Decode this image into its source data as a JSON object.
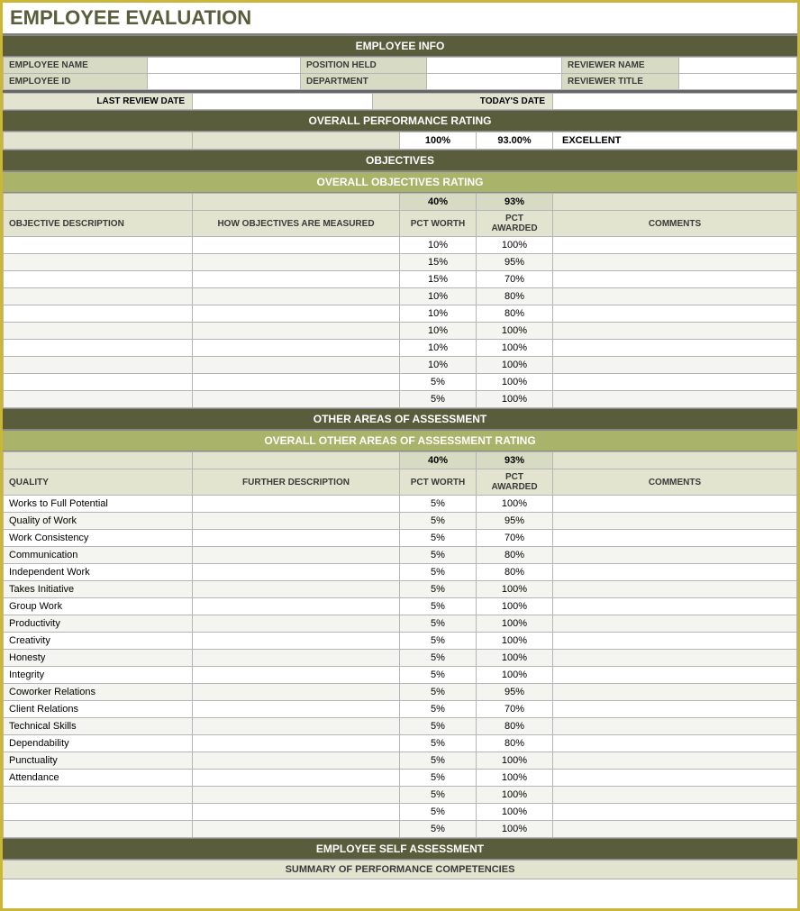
{
  "colors": {
    "border_outer": "#c9b63a",
    "section_dark": "#595d3b",
    "section_olive": "#a9b36a",
    "section_light": "#e2e4cf",
    "label_bg": "#d8dbc4",
    "grid": "#b5b5b5",
    "text_dark": "#3a3a3a",
    "row_alt": "#f4f4f0"
  },
  "title": "EMPLOYEE EVALUATION",
  "employee_info": {
    "header": "EMPLOYEE INFO",
    "labels": {
      "name": "EMPLOYEE NAME",
      "id": "EMPLOYEE ID",
      "position": "POSITION HELD",
      "department": "DEPARTMENT",
      "reviewer_name": "REVIEWER NAME",
      "reviewer_title": "REVIEWER TITLE"
    },
    "values": {
      "name": "",
      "id": "",
      "position": "",
      "department": "",
      "reviewer_name": "",
      "reviewer_title": ""
    },
    "date_labels": {
      "last": "LAST REVIEW DATE",
      "today": "TODAY'S DATE"
    },
    "date_values": {
      "last": "",
      "today": ""
    }
  },
  "overall": {
    "header": "OVERALL PERFORMANCE RATING",
    "pct_worth": "100%",
    "pct_awarded": "93.00%",
    "rating": "EXCELLENT"
  },
  "objectives": {
    "header": "OBJECTIVES",
    "subheader": "OVERALL OBJECTIVES RATING",
    "summary": {
      "worth": "40%",
      "awarded": "93%"
    },
    "columns": {
      "desc": "OBJECTIVE DESCRIPTION",
      "measured": "HOW OBJECTIVES ARE MEASURED",
      "worth": "PCT WORTH",
      "awarded": "PCT AWARDED",
      "comments": "COMMENTS"
    },
    "rows": [
      {
        "desc": "",
        "measured": "",
        "worth": "10%",
        "awarded": "100%",
        "comments": ""
      },
      {
        "desc": "",
        "measured": "",
        "worth": "15%",
        "awarded": "95%",
        "comments": ""
      },
      {
        "desc": "",
        "measured": "",
        "worth": "15%",
        "awarded": "70%",
        "comments": ""
      },
      {
        "desc": "",
        "measured": "",
        "worth": "10%",
        "awarded": "80%",
        "comments": ""
      },
      {
        "desc": "",
        "measured": "",
        "worth": "10%",
        "awarded": "80%",
        "comments": ""
      },
      {
        "desc": "",
        "measured": "",
        "worth": "10%",
        "awarded": "100%",
        "comments": ""
      },
      {
        "desc": "",
        "measured": "",
        "worth": "10%",
        "awarded": "100%",
        "comments": ""
      },
      {
        "desc": "",
        "measured": "",
        "worth": "10%",
        "awarded": "100%",
        "comments": ""
      },
      {
        "desc": "",
        "measured": "",
        "worth": "5%",
        "awarded": "100%",
        "comments": ""
      },
      {
        "desc": "",
        "measured": "",
        "worth": "5%",
        "awarded": "100%",
        "comments": ""
      }
    ]
  },
  "other_areas": {
    "header": "OTHER AREAS OF ASSESSMENT",
    "subheader": "OVERALL OTHER AREAS OF ASSESSMENT RATING",
    "summary": {
      "worth": "40%",
      "awarded": "93%"
    },
    "columns": {
      "quality": "QUALITY",
      "further": "FURTHER DESCRIPTION",
      "worth": "PCT WORTH",
      "awarded": "PCT AWARDED",
      "comments": "COMMENTS"
    },
    "rows": [
      {
        "quality": "Works to Full Potential",
        "further": "",
        "worth": "5%",
        "awarded": "100%",
        "comments": ""
      },
      {
        "quality": "Quality of Work",
        "further": "",
        "worth": "5%",
        "awarded": "95%",
        "comments": ""
      },
      {
        "quality": "Work Consistency",
        "further": "",
        "worth": "5%",
        "awarded": "70%",
        "comments": ""
      },
      {
        "quality": "Communication",
        "further": "",
        "worth": "5%",
        "awarded": "80%",
        "comments": ""
      },
      {
        "quality": "Independent Work",
        "further": "",
        "worth": "5%",
        "awarded": "80%",
        "comments": ""
      },
      {
        "quality": "Takes Initiative",
        "further": "",
        "worth": "5%",
        "awarded": "100%",
        "comments": ""
      },
      {
        "quality": "Group Work",
        "further": "",
        "worth": "5%",
        "awarded": "100%",
        "comments": ""
      },
      {
        "quality": "Productivity",
        "further": "",
        "worth": "5%",
        "awarded": "100%",
        "comments": ""
      },
      {
        "quality": "Creativity",
        "further": "",
        "worth": "5%",
        "awarded": "100%",
        "comments": ""
      },
      {
        "quality": "Honesty",
        "further": "",
        "worth": "5%",
        "awarded": "100%",
        "comments": ""
      },
      {
        "quality": "Integrity",
        "further": "",
        "worth": "5%",
        "awarded": "100%",
        "comments": ""
      },
      {
        "quality": "Coworker Relations",
        "further": "",
        "worth": "5%",
        "awarded": "95%",
        "comments": ""
      },
      {
        "quality": "Client Relations",
        "further": "",
        "worth": "5%",
        "awarded": "70%",
        "comments": ""
      },
      {
        "quality": "Technical Skills",
        "further": "",
        "worth": "5%",
        "awarded": "80%",
        "comments": ""
      },
      {
        "quality": "Dependability",
        "further": "",
        "worth": "5%",
        "awarded": "80%",
        "comments": ""
      },
      {
        "quality": "Punctuality",
        "further": "",
        "worth": "5%",
        "awarded": "100%",
        "comments": ""
      },
      {
        "quality": "Attendance",
        "further": "",
        "worth": "5%",
        "awarded": "100%",
        "comments": ""
      },
      {
        "quality": "",
        "further": "",
        "worth": "5%",
        "awarded": "100%",
        "comments": ""
      },
      {
        "quality": "",
        "further": "",
        "worth": "5%",
        "awarded": "100%",
        "comments": ""
      },
      {
        "quality": "",
        "further": "",
        "worth": "5%",
        "awarded": "100%",
        "comments": ""
      }
    ]
  },
  "self_assessment": {
    "header": "EMPLOYEE SELF ASSESSMENT",
    "subheader": "SUMMARY OF PERFORMANCE COMPETENCIES"
  }
}
